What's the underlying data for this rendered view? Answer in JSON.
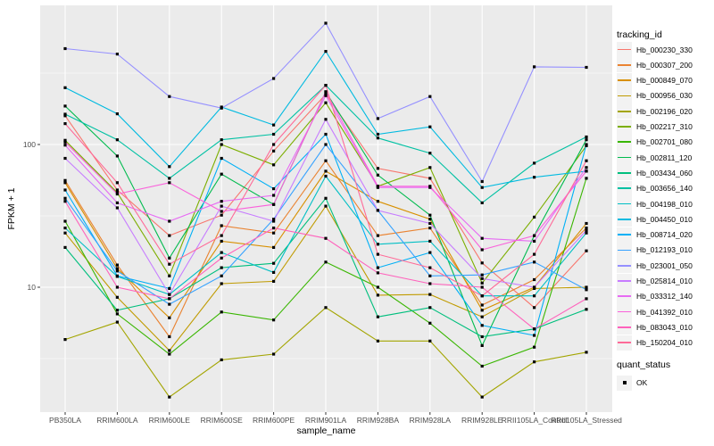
{
  "chart_data": {
    "type": "line",
    "xlabel": "sample_name",
    "ylabel": "FPKM + 1",
    "y_scale": "log10",
    "y_tick_values": [
      10,
      100
    ],
    "y_tick_labels": [
      "10",
      "100"
    ],
    "y_minor_gridlines": [
      3.162,
      31.62,
      316.2
    ],
    "ylim_displayed": [
      1.35,
      940
    ],
    "grid": "on",
    "panel_background": "#EBEBEB",
    "gridline_color": "#FFFFFF",
    "point_color": "#000000",
    "axis_text_color": "#4D4D4D",
    "categories": [
      "PB350LA",
      "RRIM600LA",
      "RRIM600LE",
      "RRIM600SE",
      "RRIM600PE",
      "RRIM901LA",
      "RRIM928BA",
      "RRIM928LA",
      "RRIM928LE",
      "RRII105LA_Control",
      "RRII105LA_Stressed"
    ],
    "legend": {
      "title": "tracking_id",
      "position": "right",
      "quant_status_title": "quant_status",
      "quant_status_items": [
        {
          "label": "OK",
          "marker": "black-square"
        }
      ]
    },
    "series": [
      {
        "tracking_id": "Hb_000230_330",
        "color": "#F8766D",
        "values": [
          159,
          48,
          23,
          32,
          90,
          225,
          68,
          58,
          14.8,
          7.2,
          18
        ]
      },
      {
        "tracking_id": "Hb_000307_200",
        "color": "#EA8331",
        "values": [
          56,
          14.3,
          4.5,
          27,
          24,
          77,
          23,
          26,
          7.5,
          11.3,
          26
        ]
      },
      {
        "tracking_id": "Hb_000849_070",
        "color": "#D89000",
        "values": [
          54,
          13.5,
          6.1,
          21,
          19,
          65,
          40,
          30,
          6.9,
          10,
          28
        ]
      },
      {
        "tracking_id": "Hb_000956_030",
        "color": "#C09B00",
        "values": [
          24,
          8.5,
          3.6,
          10.6,
          11,
          37,
          8.8,
          8.9,
          6.2,
          9.8,
          10
        ]
      },
      {
        "tracking_id": "Hb_002196_020",
        "color": "#A3A500",
        "values": [
          4.3,
          5.7,
          1.7,
          3.1,
          3.4,
          7.2,
          4.2,
          4.2,
          1.7,
          3.0,
          3.5
        ]
      },
      {
        "tracking_id": "Hb_002217_310",
        "color": "#7CAE00",
        "values": [
          107,
          46,
          12,
          100,
          72,
          196,
          51,
          69,
          10.7,
          31,
          98
        ]
      },
      {
        "tracking_id": "Hb_002701_080",
        "color": "#39B600",
        "values": [
          29,
          6.5,
          3.4,
          6.7,
          5.9,
          15,
          10,
          5.6,
          2.8,
          3.8,
          58
        ]
      },
      {
        "tracking_id": "Hb_002811_120",
        "color": "#00BB4E",
        "values": [
          186,
          83,
          16,
          62,
          38,
          234,
          61,
          32,
          3.9,
          23,
          108
        ]
      },
      {
        "tracking_id": "Hb_003434_060",
        "color": "#00BF7D",
        "values": [
          19,
          6.9,
          8.3,
          13.7,
          14.7,
          42,
          6.2,
          7.2,
          4.5,
          5.1,
          7.0
        ]
      },
      {
        "tracking_id": "Hb_003656_140",
        "color": "#00C1A3",
        "values": [
          163,
          108,
          58,
          108,
          118,
          260,
          111,
          87,
          39,
          74,
          113
        ]
      },
      {
        "tracking_id": "Hb_004198_010",
        "color": "#00BFC4",
        "values": [
          26,
          11.9,
          8.9,
          17.5,
          12.7,
          60,
          20,
          21,
          8.7,
          8.7,
          24
        ]
      },
      {
        "tracking_id": "Hb_004450_010",
        "color": "#00BAE0",
        "values": [
          250,
          164,
          70,
          183,
          137,
          449,
          118,
          133,
          50,
          59,
          65
        ]
      },
      {
        "tracking_id": "Hb_008714_020",
        "color": "#00B0F6",
        "values": [
          48,
          12,
          9.8,
          80,
          49,
          118,
          13.7,
          17.5,
          5.4,
          4.6,
          100
        ]
      },
      {
        "tracking_id": "Hb_012193_010",
        "color": "#35A2FF",
        "values": [
          42,
          13,
          7.6,
          12,
          30,
          100,
          34.5,
          12,
          12.2,
          15,
          9.6
        ]
      },
      {
        "tracking_id": "Hb_023001_050",
        "color": "#9590FF",
        "values": [
          470,
          430,
          217,
          180,
          290,
          708,
          152,
          217,
          55,
          350,
          347
        ]
      },
      {
        "tracking_id": "Hb_025814_010",
        "color": "#C77CFF",
        "values": [
          80,
          36,
          8.9,
          37,
          29,
          150,
          34.5,
          28,
          11.5,
          10,
          25
        ]
      },
      {
        "tracking_id": "Hb_033312_140",
        "color": "#E76BF3",
        "values": [
          99,
          39,
          29,
          40,
          44,
          220,
          50,
          50,
          22,
          21,
          69
        ]
      },
      {
        "tracking_id": "Hb_041392_010",
        "color": "#FA62DB",
        "values": [
          104,
          45,
          54,
          34,
          38,
          234,
          51,
          51,
          18.3,
          23,
          65
        ]
      },
      {
        "tracking_id": "Hb_083043_010",
        "color": "#FF62BC",
        "values": [
          40,
          10,
          8.3,
          16,
          26,
          22,
          12.6,
          10.6,
          10.0,
          5.1,
          8.3
        ]
      },
      {
        "tracking_id": "Hb_150204_010",
        "color": "#FF6A98",
        "values": [
          140,
          54,
          14.5,
          23,
          100,
          260,
          17,
          13.7,
          8.7,
          17,
          77
        ]
      }
    ]
  }
}
